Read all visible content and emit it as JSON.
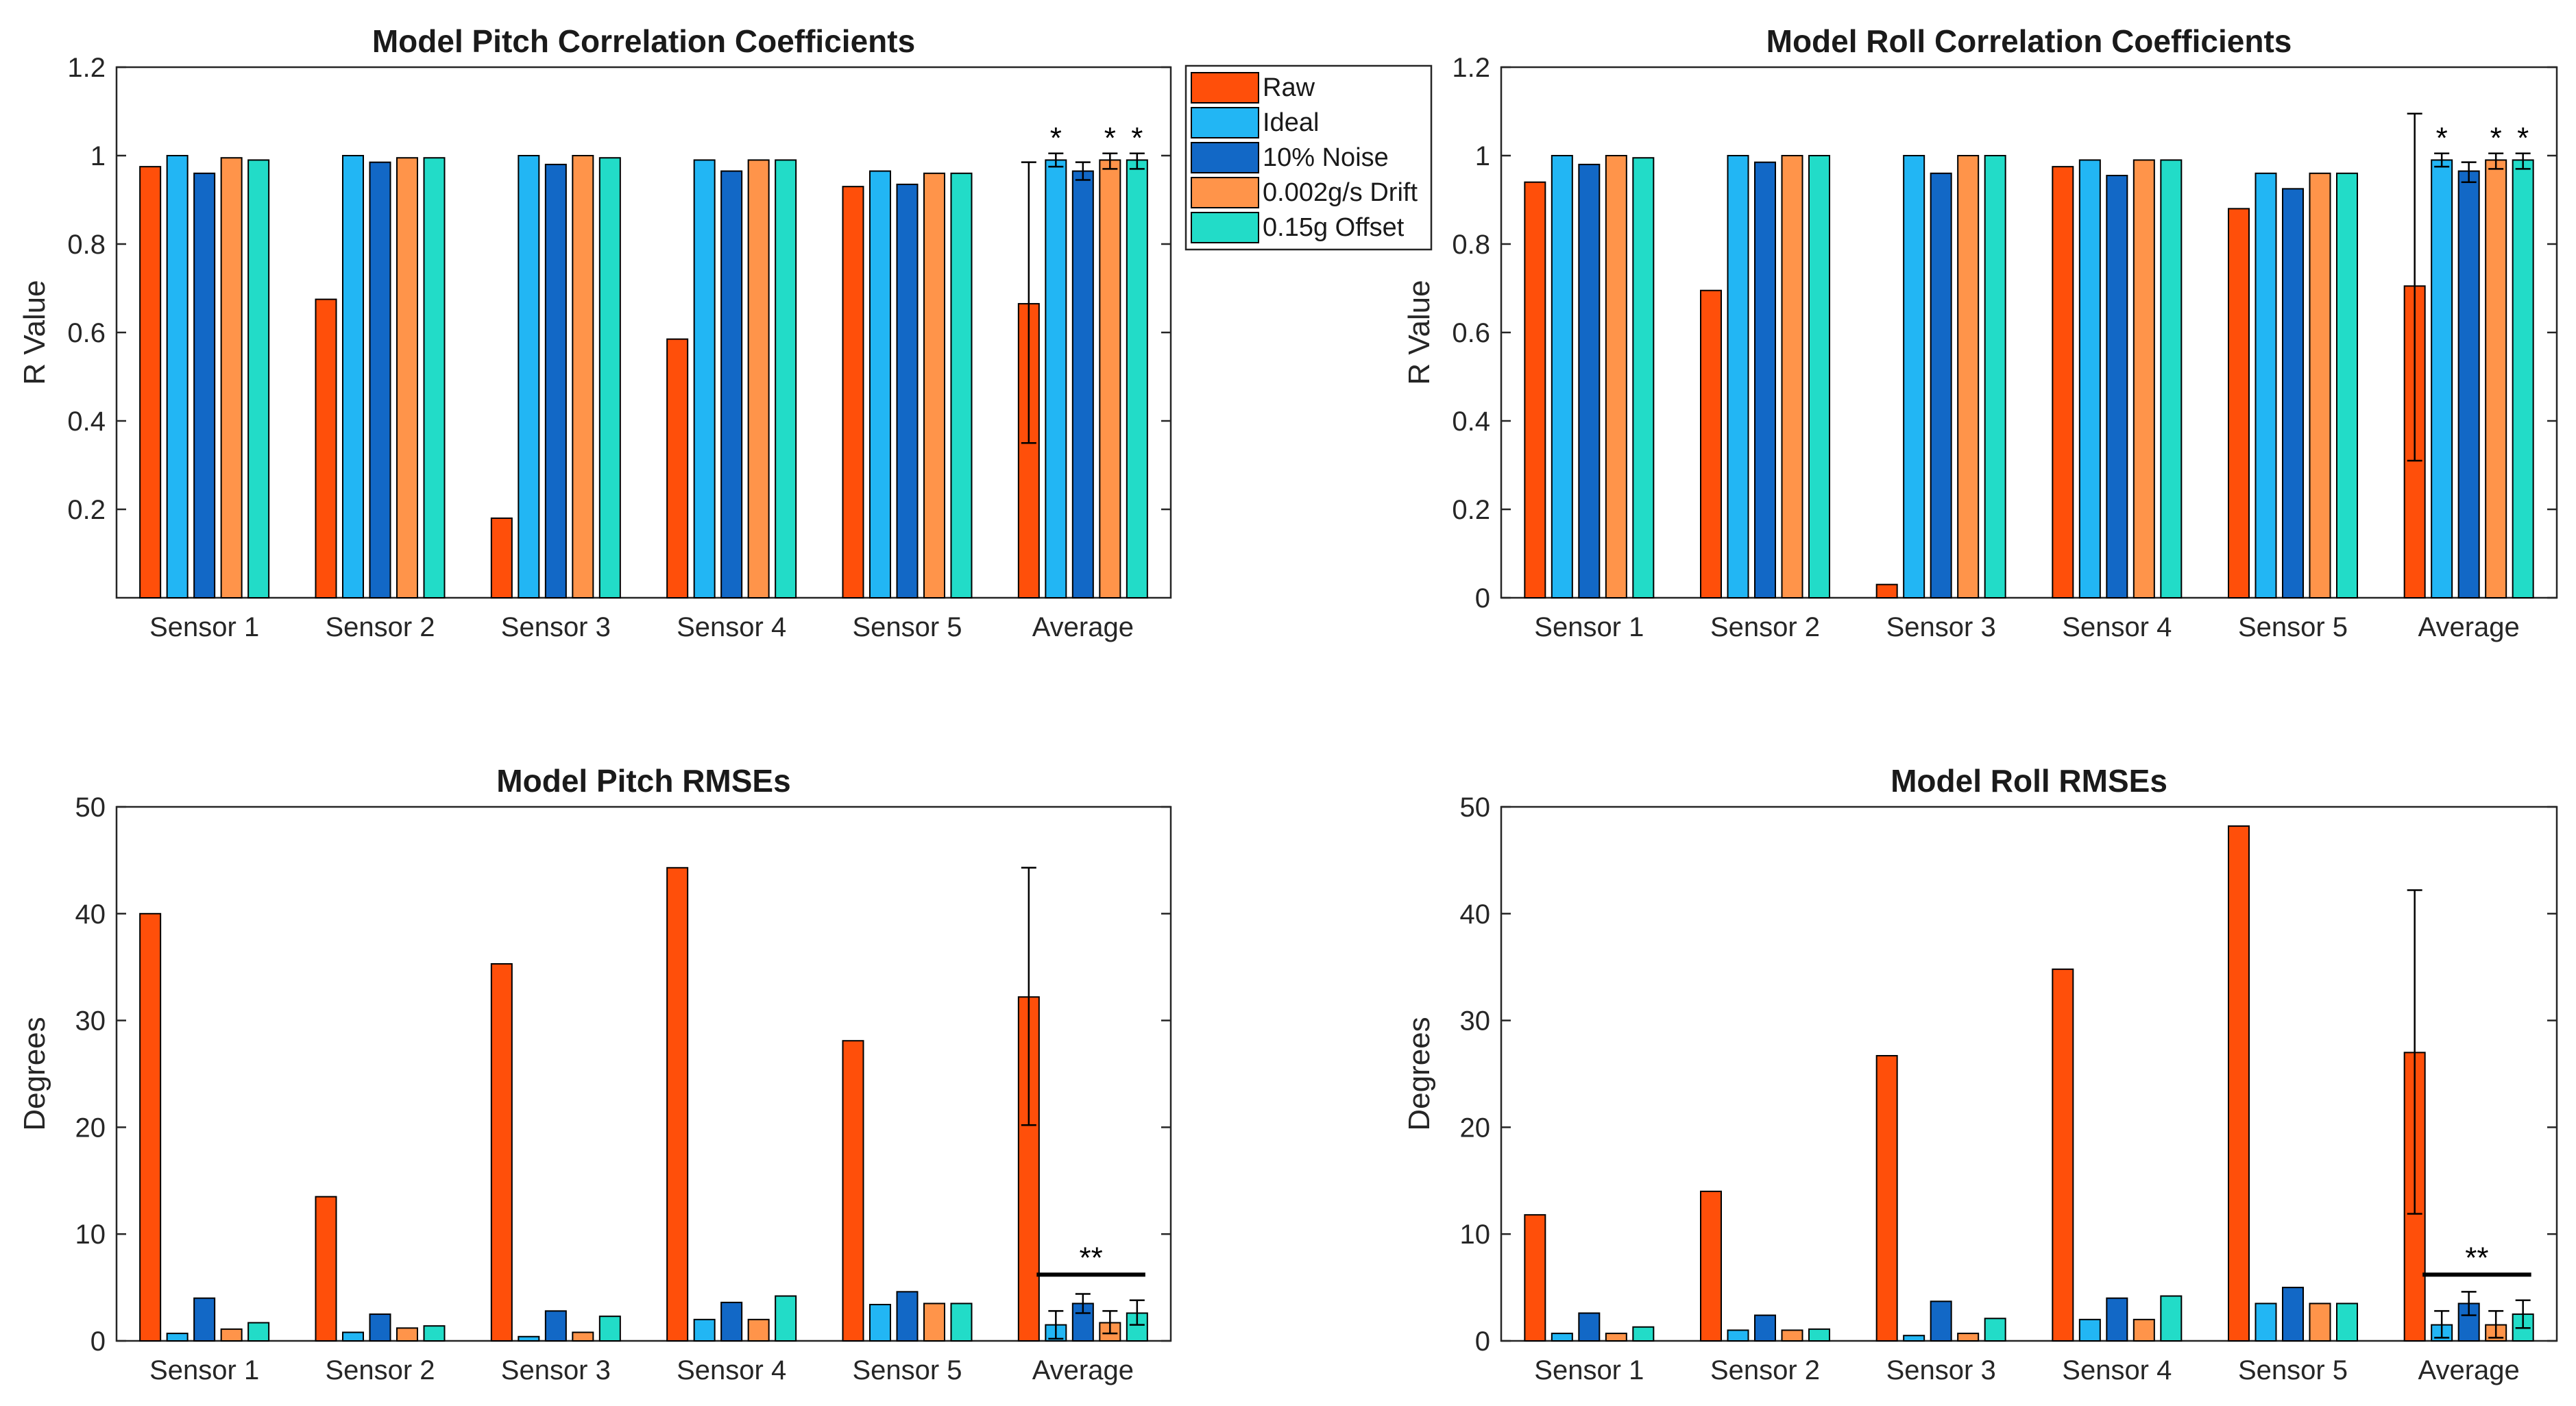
{
  "colors": {
    "Raw": "#FF4F0A",
    "Ideal": "#22B6F4",
    "10% Noise": "#1268C6",
    "0.002g/s Drift": "#FF944A",
    "0.15g Offset": "#22DCC8",
    "axis": "#262626",
    "errorbar": "#000000"
  },
  "legend": [
    "Raw",
    "Ideal",
    "10% Noise",
    "0.002g/s Drift",
    "0.15g Offset"
  ],
  "chart_data": [
    {
      "id": "pitch-corr",
      "type": "bar",
      "title": "Model Pitch Correlation Coefficients",
      "xlabel": "",
      "ylabel": "R Value",
      "ylim": [
        0,
        1.2
      ],
      "yticks": [
        "0.2",
        "0.4",
        "0.6",
        "0.8",
        "1",
        "1.2"
      ],
      "ytick_values": [
        0.2,
        0.4,
        0.6,
        0.8,
        1.0,
        1.2
      ],
      "categories": [
        "Sensor 1",
        "Sensor 2",
        "Sensor 3",
        "Sensor 4",
        "Sensor 5",
        "Average"
      ],
      "series": [
        {
          "name": "Raw",
          "values": [
            0.975,
            0.675,
            0.18,
            0.585,
            0.93,
            0.665
          ]
        },
        {
          "name": "Ideal",
          "values": [
            1.0,
            1.0,
            1.0,
            0.99,
            0.965,
            0.99
          ]
        },
        {
          "name": "10% Noise",
          "values": [
            0.96,
            0.985,
            0.98,
            0.965,
            0.935,
            0.965
          ]
        },
        {
          "name": "0.002g/s Drift",
          "values": [
            0.995,
            0.995,
            1.0,
            0.99,
            0.96,
            0.99
          ]
        },
        {
          "name": "0.15g Offset",
          "values": [
            0.99,
            0.995,
            0.995,
            0.99,
            0.96,
            0.99
          ]
        }
      ],
      "errorbars": [
        {
          "series": "Raw",
          "low": 0.35,
          "high": 0.985
        },
        {
          "series": "Ideal",
          "low": 0.975,
          "high": 1.005
        },
        {
          "series": "10% Noise",
          "low": 0.945,
          "high": 0.985
        },
        {
          "series": "0.002g/s Drift",
          "low": 0.97,
          "high": 1.005
        },
        {
          "series": "0.15g Offset",
          "low": 0.97,
          "high": 1.005
        }
      ],
      "stars": [
        {
          "series": "Ideal",
          "label": "*"
        },
        {
          "series": "0.002g/s Drift",
          "label": "*"
        },
        {
          "series": "0.15g Offset",
          "label": "*"
        }
      ],
      "bracket": null,
      "legend": true
    },
    {
      "id": "roll-corr",
      "type": "bar",
      "title": "Model Roll Correlation Coefficients",
      "xlabel": "",
      "ylabel": "R Value",
      "ylim": [
        0,
        1.2
      ],
      "yticks": [
        "0",
        "0.2",
        "0.4",
        "0.6",
        "0.8",
        "1",
        "1.2"
      ],
      "ytick_values": [
        0,
        0.2,
        0.4,
        0.6,
        0.8,
        1.0,
        1.2
      ],
      "categories": [
        "Sensor 1",
        "Sensor 2",
        "Sensor 3",
        "Sensor 4",
        "Sensor 5",
        "Average"
      ],
      "series": [
        {
          "name": "Raw",
          "values": [
            0.94,
            0.695,
            0.03,
            0.975,
            0.88,
            0.705
          ]
        },
        {
          "name": "Ideal",
          "values": [
            1.0,
            1.0,
            1.0,
            0.99,
            0.96,
            0.99
          ]
        },
        {
          "name": "10% Noise",
          "values": [
            0.98,
            0.985,
            0.96,
            0.955,
            0.925,
            0.965
          ]
        },
        {
          "name": "0.002g/s Drift",
          "values": [
            1.0,
            1.0,
            1.0,
            0.99,
            0.96,
            0.99
          ]
        },
        {
          "name": "0.15g Offset",
          "values": [
            0.995,
            1.0,
            1.0,
            0.99,
            0.96,
            0.99
          ]
        }
      ],
      "errorbars": [
        {
          "series": "Raw",
          "low": 0.31,
          "high": 1.095
        },
        {
          "series": "Ideal",
          "low": 0.975,
          "high": 1.005
        },
        {
          "series": "10% Noise",
          "low": 0.94,
          "high": 0.985
        },
        {
          "series": "0.002g/s Drift",
          "low": 0.97,
          "high": 1.005
        },
        {
          "series": "0.15g Offset",
          "low": 0.97,
          "high": 1.005
        }
      ],
      "stars": [
        {
          "series": "Ideal",
          "label": "*"
        },
        {
          "series": "0.002g/s Drift",
          "label": "*"
        },
        {
          "series": "0.15g Offset",
          "label": "*"
        }
      ],
      "bracket": null,
      "legend": false
    },
    {
      "id": "pitch-rmse",
      "type": "bar",
      "title": "Model Pitch RMSEs",
      "xlabel": "",
      "ylabel": "Degrees",
      "ylim": [
        0,
        50
      ],
      "yticks": [
        "0",
        "10",
        "20",
        "30",
        "40",
        "50"
      ],
      "ytick_values": [
        0,
        10,
        20,
        30,
        40,
        50
      ],
      "categories": [
        "Sensor 1",
        "Sensor 2",
        "Sensor 3",
        "Sensor 4",
        "Sensor 5",
        "Average"
      ],
      "series": [
        {
          "name": "Raw",
          "values": [
            40.0,
            13.5,
            35.3,
            44.3,
            28.1,
            32.2
          ]
        },
        {
          "name": "Ideal",
          "values": [
            0.7,
            0.8,
            0.4,
            2.0,
            3.4,
            1.5
          ]
        },
        {
          "name": "10% Noise",
          "values": [
            4.0,
            2.5,
            2.8,
            3.6,
            4.6,
            3.5
          ]
        },
        {
          "name": "0.002g/s Drift",
          "values": [
            1.1,
            1.2,
            0.8,
            2.0,
            3.5,
            1.7
          ]
        },
        {
          "name": "0.15g Offset",
          "values": [
            1.7,
            1.4,
            2.3,
            4.2,
            3.5,
            2.6
          ]
        }
      ],
      "errorbars": [
        {
          "series": "Raw",
          "low": 20.2,
          "high": 44.3
        },
        {
          "series": "Ideal",
          "low": 0.2,
          "high": 2.8
        },
        {
          "series": "10% Noise",
          "low": 2.6,
          "high": 4.4
        },
        {
          "series": "0.002g/s Drift",
          "low": 0.7,
          "high": 2.8
        },
        {
          "series": "0.15g Offset",
          "low": 1.5,
          "high": 3.8
        }
      ],
      "stars": [],
      "bracket": {
        "label": "**",
        "from": "Ideal",
        "to": "0.15g Offset",
        "y": 6.2
      },
      "legend": false
    },
    {
      "id": "roll-rmse",
      "type": "bar",
      "title": "Model Roll RMSEs",
      "xlabel": "",
      "ylabel": "Degrees",
      "ylim": [
        0,
        50
      ],
      "yticks": [
        "0",
        "10",
        "20",
        "30",
        "40",
        "50"
      ],
      "ytick_values": [
        0,
        10,
        20,
        30,
        40,
        50
      ],
      "categories": [
        "Sensor 1",
        "Sensor 2",
        "Sensor 3",
        "Sensor 4",
        "Sensor 5",
        "Average"
      ],
      "series": [
        {
          "name": "Raw",
          "values": [
            11.8,
            14.0,
            26.7,
            34.8,
            48.2,
            27.0
          ]
        },
        {
          "name": "Ideal",
          "values": [
            0.7,
            1.0,
            0.5,
            2.0,
            3.5,
            1.5
          ]
        },
        {
          "name": "10% Noise",
          "values": [
            2.6,
            2.4,
            3.7,
            4.0,
            5.0,
            3.5
          ]
        },
        {
          "name": "0.002g/s Drift",
          "values": [
            0.7,
            1.0,
            0.7,
            2.0,
            3.5,
            1.5
          ]
        },
        {
          "name": "0.15g Offset",
          "values": [
            1.3,
            1.1,
            2.1,
            4.2,
            3.5,
            2.5
          ]
        }
      ],
      "errorbars": [
        {
          "series": "Raw",
          "low": 11.9,
          "high": 42.2
        },
        {
          "series": "Ideal",
          "low": 0.3,
          "high": 2.8
        },
        {
          "series": "10% Noise",
          "low": 2.4,
          "high": 4.6
        },
        {
          "series": "0.002g/s Drift",
          "low": 0.3,
          "high": 2.8
        },
        {
          "series": "0.15g Offset",
          "low": 1.2,
          "high": 3.8
        }
      ],
      "stars": [],
      "bracket": {
        "label": "**",
        "from": "Ideal",
        "to": "0.15g Offset",
        "y": 6.2
      },
      "legend": false
    }
  ]
}
